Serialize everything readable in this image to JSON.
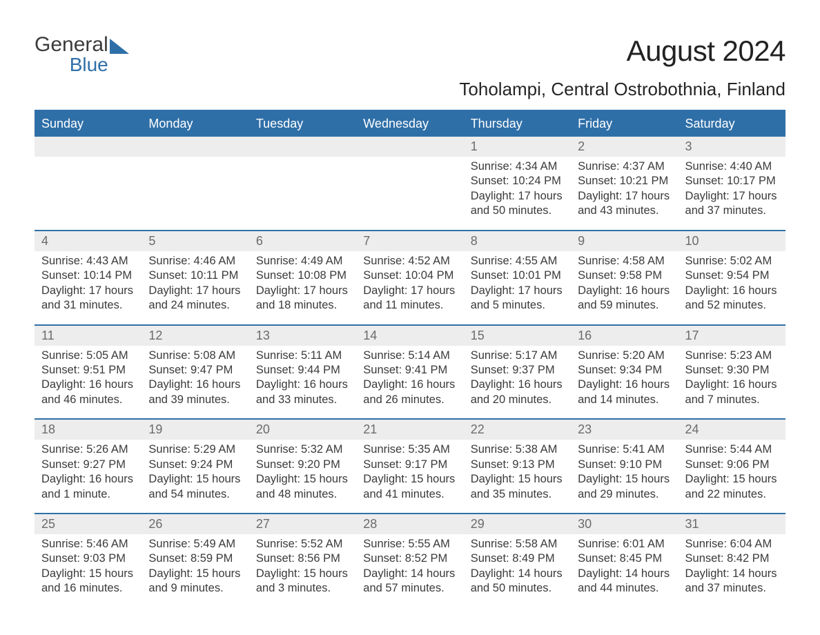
{
  "logo": {
    "part1": "General",
    "part2": "Blue"
  },
  "title": "August 2024",
  "subtitle": "Toholampi, Central Ostrobothnia, Finland",
  "colors": {
    "accent": "#2f6fa8",
    "header_bg": "#2f6fa8",
    "header_text": "#ffffff",
    "daynum_bg": "#ededed",
    "daynum_text": "#6b6b6b",
    "body_text": "#3a3a3a",
    "background": "#ffffff"
  },
  "days_of_week": [
    "Sunday",
    "Monday",
    "Tuesday",
    "Wednesday",
    "Thursday",
    "Friday",
    "Saturday"
  ],
  "weeks": [
    {
      "nums": [
        "",
        "",
        "",
        "",
        "1",
        "2",
        "3"
      ],
      "cells": [
        {
          "sunrise": "",
          "sunset": "",
          "daylight": ""
        },
        {
          "sunrise": "",
          "sunset": "",
          "daylight": ""
        },
        {
          "sunrise": "",
          "sunset": "",
          "daylight": ""
        },
        {
          "sunrise": "",
          "sunset": "",
          "daylight": ""
        },
        {
          "sunrise": "Sunrise: 4:34 AM",
          "sunset": "Sunset: 10:24 PM",
          "daylight": "Daylight: 17 hours and 50 minutes."
        },
        {
          "sunrise": "Sunrise: 4:37 AM",
          "sunset": "Sunset: 10:21 PM",
          "daylight": "Daylight: 17 hours and 43 minutes."
        },
        {
          "sunrise": "Sunrise: 4:40 AM",
          "sunset": "Sunset: 10:17 PM",
          "daylight": "Daylight: 17 hours and 37 minutes."
        }
      ]
    },
    {
      "nums": [
        "4",
        "5",
        "6",
        "7",
        "8",
        "9",
        "10"
      ],
      "cells": [
        {
          "sunrise": "Sunrise: 4:43 AM",
          "sunset": "Sunset: 10:14 PM",
          "daylight": "Daylight: 17 hours and 31 minutes."
        },
        {
          "sunrise": "Sunrise: 4:46 AM",
          "sunset": "Sunset: 10:11 PM",
          "daylight": "Daylight: 17 hours and 24 minutes."
        },
        {
          "sunrise": "Sunrise: 4:49 AM",
          "sunset": "Sunset: 10:08 PM",
          "daylight": "Daylight: 17 hours and 18 minutes."
        },
        {
          "sunrise": "Sunrise: 4:52 AM",
          "sunset": "Sunset: 10:04 PM",
          "daylight": "Daylight: 17 hours and 11 minutes."
        },
        {
          "sunrise": "Sunrise: 4:55 AM",
          "sunset": "Sunset: 10:01 PM",
          "daylight": "Daylight: 17 hours and 5 minutes."
        },
        {
          "sunrise": "Sunrise: 4:58 AM",
          "sunset": "Sunset: 9:58 PM",
          "daylight": "Daylight: 16 hours and 59 minutes."
        },
        {
          "sunrise": "Sunrise: 5:02 AM",
          "sunset": "Sunset: 9:54 PM",
          "daylight": "Daylight: 16 hours and 52 minutes."
        }
      ]
    },
    {
      "nums": [
        "11",
        "12",
        "13",
        "14",
        "15",
        "16",
        "17"
      ],
      "cells": [
        {
          "sunrise": "Sunrise: 5:05 AM",
          "sunset": "Sunset: 9:51 PM",
          "daylight": "Daylight: 16 hours and 46 minutes."
        },
        {
          "sunrise": "Sunrise: 5:08 AM",
          "sunset": "Sunset: 9:47 PM",
          "daylight": "Daylight: 16 hours and 39 minutes."
        },
        {
          "sunrise": "Sunrise: 5:11 AM",
          "sunset": "Sunset: 9:44 PM",
          "daylight": "Daylight: 16 hours and 33 minutes."
        },
        {
          "sunrise": "Sunrise: 5:14 AM",
          "sunset": "Sunset: 9:41 PM",
          "daylight": "Daylight: 16 hours and 26 minutes."
        },
        {
          "sunrise": "Sunrise: 5:17 AM",
          "sunset": "Sunset: 9:37 PM",
          "daylight": "Daylight: 16 hours and 20 minutes."
        },
        {
          "sunrise": "Sunrise: 5:20 AM",
          "sunset": "Sunset: 9:34 PM",
          "daylight": "Daylight: 16 hours and 14 minutes."
        },
        {
          "sunrise": "Sunrise: 5:23 AM",
          "sunset": "Sunset: 9:30 PM",
          "daylight": "Daylight: 16 hours and 7 minutes."
        }
      ]
    },
    {
      "nums": [
        "18",
        "19",
        "20",
        "21",
        "22",
        "23",
        "24"
      ],
      "cells": [
        {
          "sunrise": "Sunrise: 5:26 AM",
          "sunset": "Sunset: 9:27 PM",
          "daylight": "Daylight: 16 hours and 1 minute."
        },
        {
          "sunrise": "Sunrise: 5:29 AM",
          "sunset": "Sunset: 9:24 PM",
          "daylight": "Daylight: 15 hours and 54 minutes."
        },
        {
          "sunrise": "Sunrise: 5:32 AM",
          "sunset": "Sunset: 9:20 PM",
          "daylight": "Daylight: 15 hours and 48 minutes."
        },
        {
          "sunrise": "Sunrise: 5:35 AM",
          "sunset": "Sunset: 9:17 PM",
          "daylight": "Daylight: 15 hours and 41 minutes."
        },
        {
          "sunrise": "Sunrise: 5:38 AM",
          "sunset": "Sunset: 9:13 PM",
          "daylight": "Daylight: 15 hours and 35 minutes."
        },
        {
          "sunrise": "Sunrise: 5:41 AM",
          "sunset": "Sunset: 9:10 PM",
          "daylight": "Daylight: 15 hours and 29 minutes."
        },
        {
          "sunrise": "Sunrise: 5:44 AM",
          "sunset": "Sunset: 9:06 PM",
          "daylight": "Daylight: 15 hours and 22 minutes."
        }
      ]
    },
    {
      "nums": [
        "25",
        "26",
        "27",
        "28",
        "29",
        "30",
        "31"
      ],
      "cells": [
        {
          "sunrise": "Sunrise: 5:46 AM",
          "sunset": "Sunset: 9:03 PM",
          "daylight": "Daylight: 15 hours and 16 minutes."
        },
        {
          "sunrise": "Sunrise: 5:49 AM",
          "sunset": "Sunset: 8:59 PM",
          "daylight": "Daylight: 15 hours and 9 minutes."
        },
        {
          "sunrise": "Sunrise: 5:52 AM",
          "sunset": "Sunset: 8:56 PM",
          "daylight": "Daylight: 15 hours and 3 minutes."
        },
        {
          "sunrise": "Sunrise: 5:55 AM",
          "sunset": "Sunset: 8:52 PM",
          "daylight": "Daylight: 14 hours and 57 minutes."
        },
        {
          "sunrise": "Sunrise: 5:58 AM",
          "sunset": "Sunset: 8:49 PM",
          "daylight": "Daylight: 14 hours and 50 minutes."
        },
        {
          "sunrise": "Sunrise: 6:01 AM",
          "sunset": "Sunset: 8:45 PM",
          "daylight": "Daylight: 14 hours and 44 minutes."
        },
        {
          "sunrise": "Sunrise: 6:04 AM",
          "sunset": "Sunset: 8:42 PM",
          "daylight": "Daylight: 14 hours and 37 minutes."
        }
      ]
    }
  ]
}
